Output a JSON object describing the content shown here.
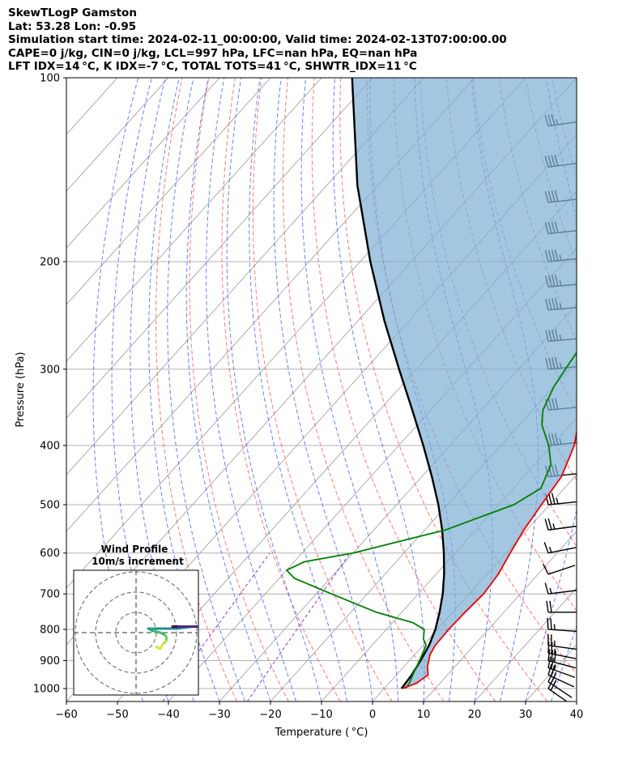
{
  "header": {
    "line1": "SkewTLogP Gamston",
    "line2": "Lat: 53.28   Lon: -0.95",
    "line3": "Simulation start time: 2024-02-11_00:00:00, Valid time: 2024-02-13T07:00:00.00",
    "line4": "CAPE=0 j/kg, CIN=0 j/kg, LCL=997 hPa, LFC=nan hPa, EQ=nan hPa",
    "line5": "LFT IDX=14 °C, K IDX=-7 °C, TOTAL TOTS=41 °C, SHWTR_IDX=11 °C"
  },
  "chart_data": {
    "type": "skewt-logp",
    "xlabel": "Temperature ( °C)",
    "ylabel": "Pressure (hPa)",
    "xlim": [
      -60,
      40
    ],
    "ylim": [
      1050,
      100
    ],
    "x_ticks": [
      -60,
      -50,
      -40,
      -30,
      -20,
      -10,
      0,
      10,
      20,
      30,
      40
    ],
    "x_tick_labels": [
      "−60",
      "−50",
      "−40",
      "−30",
      "−20",
      "−10",
      "0",
      "10",
      "20",
      "30",
      "40"
    ],
    "y_ticks": [
      100,
      200,
      300,
      400,
      500,
      600,
      700,
      800,
      900,
      1000
    ],
    "y_tick_labels": [
      "100",
      "200",
      "300",
      "400",
      "500",
      "600",
      "700",
      "800",
      "900",
      "1000"
    ],
    "colors": {
      "temperature": "#ee0000",
      "dewpoint": "#008000",
      "parcel": "#000000",
      "cape_fill": "#7fb0d6",
      "dry_adiabat": "#ff5555",
      "moist_adiabat": "#3355ff",
      "mixing_ratio": "#9933cc",
      "isotherm": "#9a9a9a"
    },
    "series": [
      {
        "name": "Temperature",
        "points": [
          [
            1000,
            3.6
          ],
          [
            980,
            5.4
          ],
          [
            950,
            6.2
          ],
          [
            920,
            4.6
          ],
          [
            880,
            3.0
          ],
          [
            850,
            2.4
          ],
          [
            800,
            2.2
          ],
          [
            750,
            2.4
          ],
          [
            700,
            2.8
          ],
          [
            650,
            2.2
          ],
          [
            600,
            0.8
          ],
          [
            550,
            -0.6
          ],
          [
            500,
            -1.6
          ],
          [
            450,
            -2.6
          ],
          [
            400,
            -5.6
          ],
          [
            350,
            -10.6
          ],
          [
            300,
            -16.4
          ],
          [
            270,
            -19.4
          ],
          [
            250,
            -20.0
          ],
          [
            230,
            -17.6
          ],
          [
            210,
            -11.0
          ],
          [
            195,
            -6.0
          ],
          [
            180,
            -1.2
          ],
          [
            170,
            2.4
          ],
          [
            160,
            6.0
          ],
          [
            150,
            8.8
          ],
          [
            140,
            10.8
          ],
          [
            130,
            11.6
          ],
          [
            120,
            11.8
          ],
          [
            110,
            12.6
          ],
          [
            100,
            13.2
          ]
        ]
      },
      {
        "name": "Dewpoint",
        "points": [
          [
            1000,
            4.2
          ],
          [
            980,
            4.0
          ],
          [
            950,
            3.2
          ],
          [
            900,
            2.0
          ],
          [
            850,
            0.6
          ],
          [
            830,
            -1.0
          ],
          [
            800,
            -2.6
          ],
          [
            780,
            -6.0
          ],
          [
            750,
            -15.0
          ],
          [
            700,
            -27.0
          ],
          [
            660,
            -37.0
          ],
          [
            640,
            -40.0
          ],
          [
            620,
            -38.0
          ],
          [
            600,
            -30.0
          ],
          [
            550,
            -16.0
          ],
          [
            500,
            -7.0
          ],
          [
            470,
            -4.6
          ],
          [
            430,
            -6.8
          ],
          [
            400,
            -10.6
          ],
          [
            370,
            -15.6
          ],
          [
            350,
            -18.0
          ],
          [
            320,
            -20.0
          ],
          [
            300,
            -20.8
          ],
          [
            280,
            -21.6
          ],
          [
            260,
            -23.0
          ],
          [
            240,
            -22.4
          ],
          [
            220,
            -20.0
          ],
          [
            205,
            -18.4
          ],
          [
            190,
            -19.4
          ],
          [
            180,
            -22.4
          ],
          [
            170,
            -24.4
          ],
          [
            160,
            -22.2
          ],
          [
            150,
            -19.6
          ],
          [
            130,
            -14.4
          ],
          [
            110,
            -8.6
          ],
          [
            100,
            -6.0
          ]
        ]
      },
      {
        "name": "Parcel",
        "points": [
          [
            1000,
            3.4
          ],
          [
            950,
            3.0
          ],
          [
            900,
            2.2
          ],
          [
            850,
            1.2
          ],
          [
            800,
            -0.4
          ],
          [
            750,
            -2.6
          ],
          [
            700,
            -5.2
          ],
          [
            650,
            -8.4
          ],
          [
            600,
            -12.2
          ],
          [
            550,
            -16.6
          ],
          [
            500,
            -21.8
          ],
          [
            450,
            -28.0
          ],
          [
            400,
            -35.2
          ],
          [
            350,
            -43.6
          ],
          [
            300,
            -53.4
          ],
          [
            250,
            -64.8
          ],
          [
            200,
            -78.0
          ],
          [
            150,
            -94.0
          ],
          [
            100,
            -114.0
          ]
        ]
      }
    ],
    "hodograph": {
      "title": "Wind Profile",
      "subtitle": "10m/s increment",
      "rings_ms": [
        10,
        20,
        30
      ]
    },
    "wind_barbs": [
      {
        "p": 1000,
        "u": 10,
        "v": -7
      },
      {
        "p": 975,
        "u": 12,
        "v": -8
      },
      {
        "p": 950,
        "u": 13,
        "v": -6
      },
      {
        "p": 925,
        "u": 14,
        "v": -5
      },
      {
        "p": 900,
        "u": 15,
        "v": -4
      },
      {
        "p": 875,
        "u": 15,
        "v": -3
      },
      {
        "p": 850,
        "u": 15,
        "v": -2
      },
      {
        "p": 800,
        "u": 14,
        "v": -1
      },
      {
        "p": 750,
        "u": 12,
        "v": 0
      },
      {
        "p": 700,
        "u": 8,
        "v": 1
      },
      {
        "p": 650,
        "u": 6,
        "v": 2
      },
      {
        "p": 600,
        "u": 10,
        "v": 2
      },
      {
        "p": 550,
        "u": 15,
        "v": 2
      },
      {
        "p": 500,
        "u": 20,
        "v": 2
      },
      {
        "p": 450,
        "u": 28,
        "v": 3
      },
      {
        "p": 400,
        "u": 30,
        "v": 3
      },
      {
        "p": 350,
        "u": 32,
        "v": 3
      },
      {
        "p": 300,
        "u": 34,
        "v": 3
      },
      {
        "p": 270,
        "u": 35,
        "v": 3
      },
      {
        "p": 240,
        "u": 35,
        "v": 3
      },
      {
        "p": 220,
        "u": 34,
        "v": 3
      },
      {
        "p": 200,
        "u": 30,
        "v": 3
      },
      {
        "p": 180,
        "u": 28,
        "v": 3
      },
      {
        "p": 160,
        "u": 27,
        "v": 3
      },
      {
        "p": 140,
        "u": 23,
        "v": 3
      },
      {
        "p": 120,
        "u": 20,
        "v": 3
      },
      {
        "p": 100,
        "u": 18,
        "v": 3
      }
    ]
  }
}
